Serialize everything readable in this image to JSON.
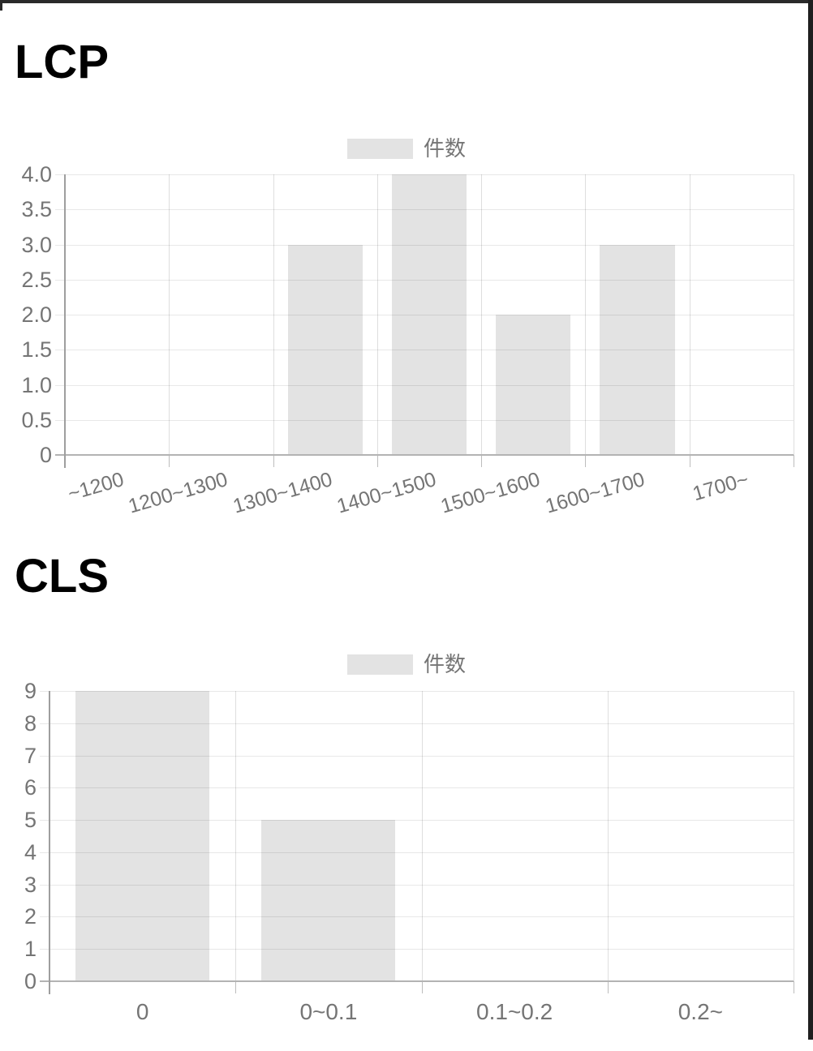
{
  "page": {
    "background": "#ffffff",
    "top_border_color": "#2a2a2a",
    "right_border_color": "#1f1f1f"
  },
  "chart_data": [
    {
      "type": "bar",
      "title": "LCP",
      "legend": {
        "label": "件数",
        "swatch_color": "#e3e3e3",
        "position": "top-center"
      },
      "categories": [
        "~1200",
        "1200~1300",
        "1300~1400",
        "1400~1500",
        "1500~1600",
        "1600~1700",
        "1700~"
      ],
      "values": [
        0,
        0,
        3,
        4,
        2,
        3,
        0
      ],
      "xlabel": "",
      "ylabel": "",
      "ylim": [
        0,
        4
      ],
      "y_ticks": [
        "4.0",
        "3.5",
        "3.0",
        "2.5",
        "2.0",
        "1.5",
        "1.0",
        "0.5",
        "0"
      ],
      "grid": true,
      "bar_color": "#e3e3e3",
      "axis_text_color": "#757575",
      "x_labels_rotated": true
    },
    {
      "type": "bar",
      "title": "CLS",
      "legend": {
        "label": "件数",
        "swatch_color": "#e3e3e3",
        "position": "top-center"
      },
      "categories": [
        "0",
        "0~0.1",
        "0.1~0.2",
        "0.2~"
      ],
      "values": [
        9,
        5,
        0,
        0
      ],
      "xlabel": "",
      "ylabel": "",
      "ylim": [
        0,
        9
      ],
      "y_ticks": [
        "9",
        "8",
        "7",
        "6",
        "5",
        "4",
        "3",
        "2",
        "1",
        "0"
      ],
      "grid": true,
      "bar_color": "#e3e3e3",
      "axis_text_color": "#757575",
      "x_labels_rotated": false
    }
  ]
}
